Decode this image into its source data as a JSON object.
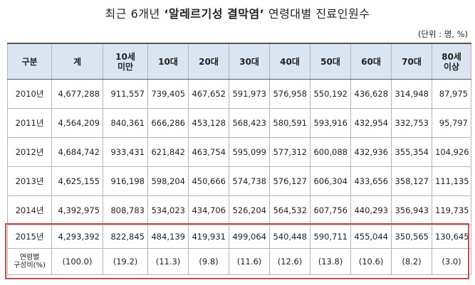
{
  "title": {
    "prefix": "최근 6개년 ",
    "disease": "‘알레르기성 결막염’",
    "suffix": " 연령대별 진료인원수"
  },
  "unit": "(단위 : 명, %)",
  "headers": [
    "구분",
    "계",
    "10세\n미만",
    "10대",
    "20대",
    "30대",
    "40대",
    "50대",
    "60대",
    "70대",
    "80세\n이상"
  ],
  "rows": [
    {
      "year": "2010년",
      "values": [
        "4,677,288",
        "911,557",
        "739,405",
        "467,652",
        "591,973",
        "576,958",
        "550,192",
        "436,628",
        "314,948",
        "87,975"
      ]
    },
    {
      "year": "2011년",
      "values": [
        "4,564,209",
        "840,361",
        "666,286",
        "453,128",
        "568,423",
        "580,591",
        "593,916",
        "432,954",
        "332,753",
        "95,797"
      ]
    },
    {
      "year": "2012년",
      "values": [
        "4,684,742",
        "933,431",
        "621,842",
        "463,754",
        "595,099",
        "577,312",
        "600,088",
        "432,936",
        "355,354",
        "104,926"
      ]
    },
    {
      "year": "2013년",
      "values": [
        "4,625,155",
        "916,198",
        "598,204",
        "450,666",
        "574,738",
        "576,127",
        "606,304",
        "433,656",
        "358,127",
        "111,135"
      ]
    },
    {
      "year": "2014년",
      "values": [
        "4,392,975",
        "808,783",
        "534,023",
        "434,706",
        "526,204",
        "564,532",
        "607,756",
        "440,293",
        "356,943",
        "119,735"
      ]
    },
    {
      "year": "2015년",
      "values": [
        "4,293,392",
        "822,845",
        "484,139",
        "419,931",
        "499,064",
        "540,448",
        "590,711",
        "455,044",
        "350,565",
        "130,645"
      ]
    }
  ],
  "share": {
    "label": "연령별\n구성비(%)",
    "values": [
      "(100.0)",
      "(19.2)",
      "(11.3)",
      "(9.8)",
      "(11.6)",
      "(12.6)",
      "(13.8)",
      "(10.6)",
      "(8.2)",
      "(3.0)"
    ]
  }
}
